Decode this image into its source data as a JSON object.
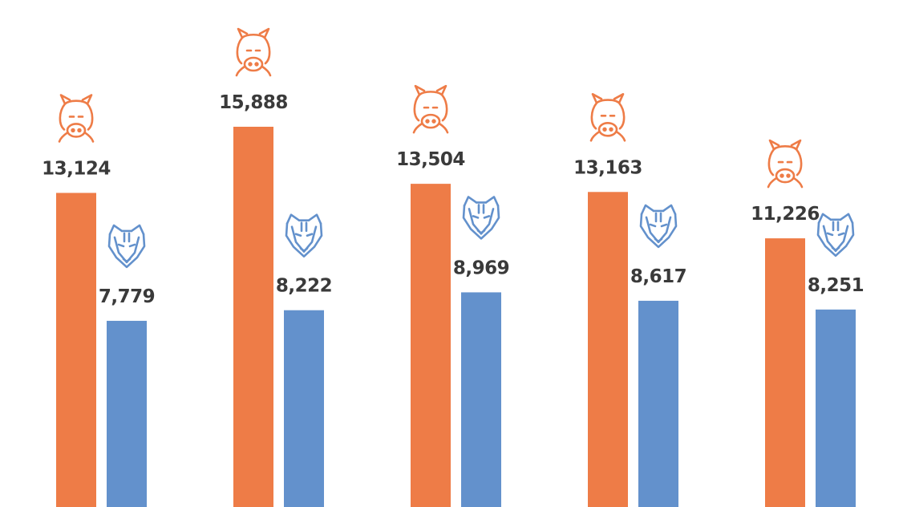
{
  "chart_data": {
    "type": "bar",
    "categories": [
      "",
      "",
      "",
      "",
      ""
    ],
    "series": [
      {
        "icon": "boar-icon",
        "color": "#ee7c47",
        "values": [
          13124,
          15888,
          13504,
          13163,
          11226
        ],
        "labels": [
          "13,124",
          "15,888",
          "13,504",
          "13,163",
          "11,226"
        ]
      },
      {
        "icon": "fox-icon",
        "color": "#6391cc",
        "values": [
          7779,
          8222,
          8969,
          8617,
          8251
        ],
        "labels": [
          "7,779",
          "8,222",
          "8,969",
          "8,617",
          "8,251"
        ]
      }
    ],
    "ylim": [
      0,
      16000
    ],
    "grid": false,
    "legend": "none"
  }
}
